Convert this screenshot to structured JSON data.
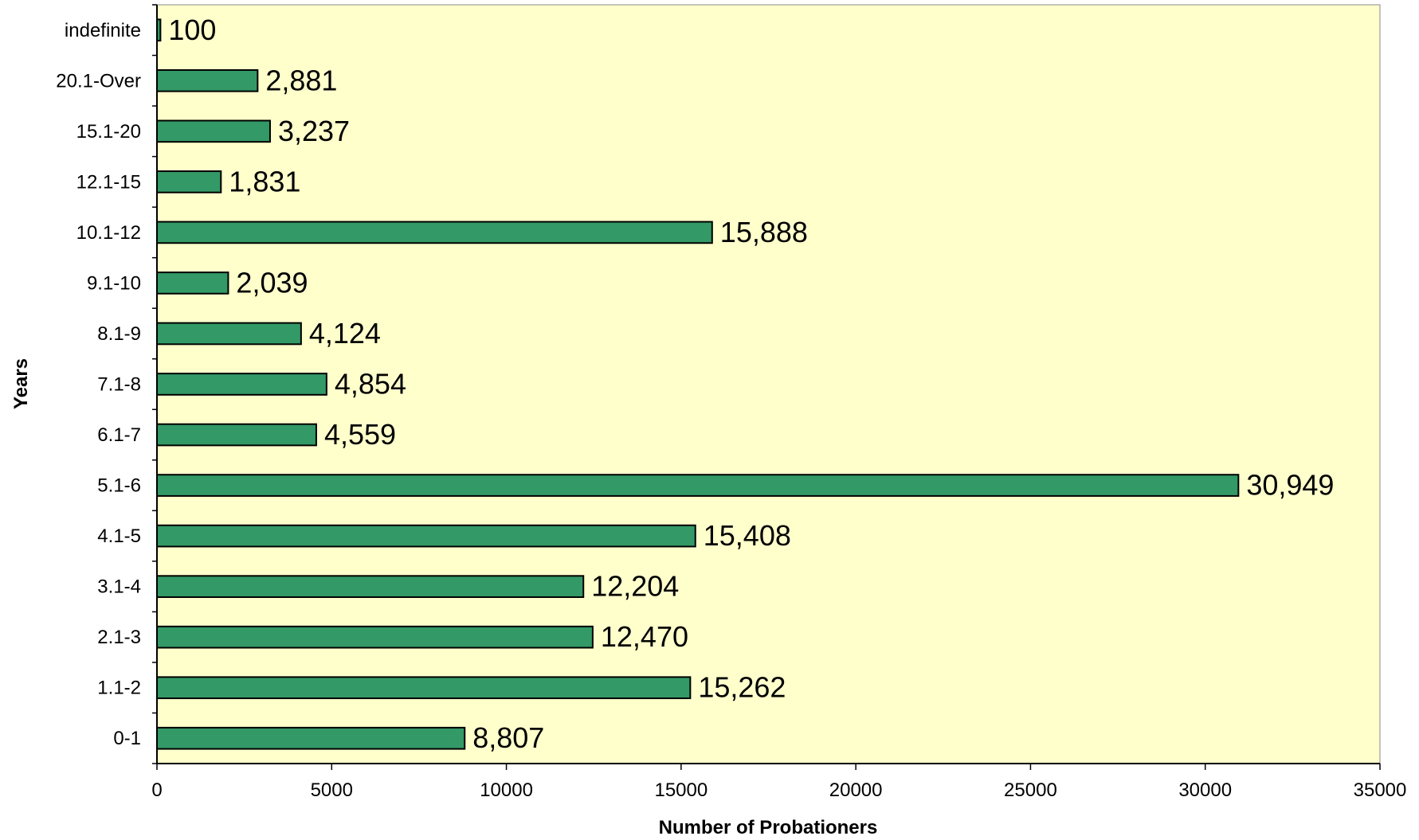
{
  "chart_data": {
    "type": "bar",
    "orientation": "horizontal",
    "xlabel": "Number of Probationers",
    "ylabel": "Years",
    "categories": [
      "0-1",
      "1.1-2",
      "2.1-3",
      "3.1-4",
      "4.1-5",
      "5.1-6",
      "6.1-7",
      "7.1-8",
      "8.1-9",
      "9.1-10",
      "10.1-12",
      "12.1-15",
      "15.1-20",
      "20.1-Over",
      "indefinite"
    ],
    "values": [
      8807,
      15262,
      12470,
      12204,
      15408,
      30949,
      4559,
      4854,
      4124,
      2039,
      15888,
      1831,
      3237,
      2881,
      100
    ],
    "value_labels": [
      "8,807",
      "15,262",
      "12,470",
      "12,204",
      "15,408",
      "30,949",
      "4,559",
      "4,854",
      "4,124",
      "2,039",
      "15,888",
      "1,831",
      "3,237",
      "2,881",
      "100"
    ],
    "xlim": [
      0,
      35000
    ],
    "xticks": [
      0,
      5000,
      10000,
      15000,
      20000,
      25000,
      30000,
      35000
    ],
    "xtick_labels": [
      "0",
      "5000",
      "10000",
      "15000",
      "20000",
      "25000",
      "30000",
      "35000"
    ],
    "grid": false,
    "legend": "none",
    "colors": {
      "bar_fill": "#339966",
      "bar_stroke": "#000000",
      "plot_background": "#ffffcc"
    }
  }
}
